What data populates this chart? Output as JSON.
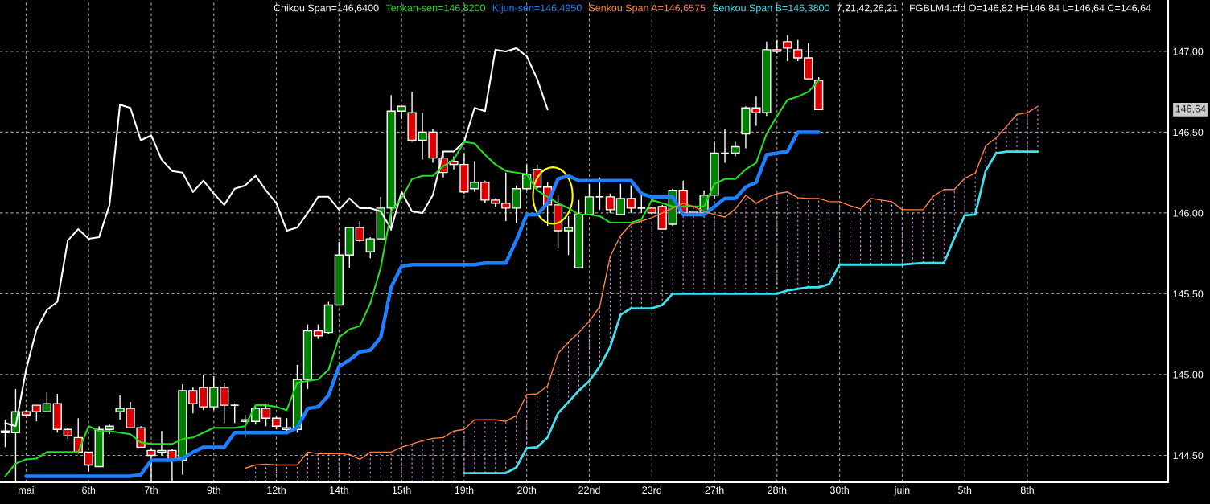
{
  "chart_data": {
    "type": "candlestick",
    "categories": [
      null,
      null,
      "mai",
      null,
      null,
      null,
      null,
      null,
      "6th",
      null,
      null,
      null,
      null,
      null,
      "7th",
      null,
      null,
      null,
      null,
      null,
      "9th",
      null,
      null,
      null,
      null,
      null,
      "12th",
      null,
      null,
      null,
      null,
      null,
      "14th",
      null,
      null,
      null,
      null,
      null,
      "15th",
      null,
      null,
      null,
      null,
      null,
      "19th",
      null,
      null,
      null,
      null,
      null,
      "20th",
      null,
      null,
      null,
      null,
      null,
      "22nd",
      null,
      null,
      null,
      null,
      null,
      "23rd",
      null,
      null,
      null,
      null,
      null,
      "27th",
      null,
      null,
      null,
      null,
      null,
      "28th",
      null,
      null,
      null,
      null,
      null,
      "30th",
      null,
      null,
      null,
      null,
      null,
      "juin",
      null,
      null,
      null,
      null,
      null,
      "5th",
      null,
      null,
      null,
      null,
      null,
      "8th",
      null,
      null,
      null,
      null,
      null,
      null,
      null,
      null,
      null,
      null,
      null,
      null,
      null
    ],
    "ohlc": [
      [
        144.64,
        144.72,
        144.55,
        144.65
      ],
      [
        144.64,
        144.91,
        144.34,
        144.77
      ],
      [
        144.77,
        144.78,
        144.74,
        144.75
      ],
      [
        144.81,
        144.81,
        144.71,
        144.77
      ],
      [
        144.77,
        144.89,
        144.77,
        144.82
      ],
      [
        144.82,
        144.88,
        144.64,
        144.66
      ],
      [
        144.66,
        144.67,
        144.6,
        144.62
      ],
      [
        144.61,
        144.73,
        144.51,
        144.52
      ],
      [
        144.52,
        144.52,
        144.4,
        144.44
      ],
      [
        144.43,
        144.68,
        144.43,
        144.66
      ],
      [
        144.66,
        144.69,
        144.63,
        144.68
      ],
      [
        144.77,
        144.87,
        144.72,
        144.79
      ],
      [
        144.79,
        144.83,
        144.67,
        144.67
      ],
      [
        144.67,
        144.68,
        144.55,
        144.55
      ],
      [
        144.53,
        144.54,
        144.34,
        144.5
      ],
      [
        144.52,
        144.65,
        144.5,
        144.53
      ],
      [
        144.53,
        144.54,
        144.34,
        144.47
      ],
      [
        144.47,
        144.94,
        144.38,
        144.9
      ],
      [
        144.9,
        144.92,
        144.76,
        144.82
      ],
      [
        144.92,
        145.0,
        144.78,
        144.8
      ],
      [
        144.8,
        144.99,
        144.78,
        144.92
      ],
      [
        144.92,
        144.95,
        144.7,
        144.81
      ],
      [
        144.81,
        144.82,
        144.7,
        144.81
      ],
      [
        144.71,
        144.75,
        144.61,
        144.72
      ],
      [
        144.71,
        144.81,
        144.69,
        144.79
      ],
      [
        144.79,
        144.82,
        144.68,
        144.73
      ],
      [
        144.73,
        144.74,
        144.66,
        144.68
      ],
      [
        144.67,
        144.73,
        144.65,
        144.66
      ],
      [
        144.66,
        145.06,
        144.64,
        144.97
      ],
      [
        144.97,
        145.31,
        144.91,
        145.27
      ],
      [
        145.27,
        145.31,
        145.22,
        145.24
      ],
      [
        145.26,
        145.45,
        145.25,
        145.43
      ],
      [
        145.43,
        145.82,
        145.43,
        145.74
      ],
      [
        145.74,
        145.91,
        145.66,
        145.91
      ],
      [
        145.91,
        145.95,
        145.82,
        145.83
      ],
      [
        145.76,
        145.85,
        145.72,
        145.84
      ],
      [
        145.84,
        146.1,
        145.83,
        146.03
      ],
      [
        146.03,
        146.73,
        145.89,
        146.63
      ],
      [
        146.63,
        146.66,
        146.58,
        146.66
      ],
      [
        146.62,
        146.75,
        146.44,
        146.45
      ],
      [
        146.45,
        146.62,
        146.33,
        146.5
      ],
      [
        146.5,
        146.52,
        146.31,
        146.34
      ],
      [
        146.34,
        146.37,
        146.22,
        146.25
      ],
      [
        146.32,
        146.35,
        146.27,
        146.3
      ],
      [
        146.3,
        146.37,
        146.12,
        146.13
      ],
      [
        146.15,
        146.32,
        146.13,
        146.19
      ],
      [
        146.19,
        146.2,
        146.06,
        146.08
      ],
      [
        146.08,
        146.09,
        146.04,
        146.06
      ],
      [
        146.06,
        146.25,
        145.95,
        146.03
      ],
      [
        146.03,
        146.17,
        145.94,
        146.15
      ],
      [
        146.15,
        146.3,
        146.14,
        146.24
      ],
      [
        146.27,
        146.3,
        146.15,
        146.16
      ],
      [
        146.16,
        146.19,
        145.92,
        146.05
      ],
      [
        146.05,
        146.11,
        145.78,
        145.89
      ],
      [
        145.89,
        145.98,
        145.74,
        145.91
      ],
      [
        145.66,
        146.08,
        145.66,
        145.99
      ],
      [
        145.99,
        146.18,
        145.99,
        146.1
      ],
      [
        146.1,
        146.22,
        146.02,
        146.1
      ],
      [
        146.1,
        146.12,
        146.0,
        146.02
      ],
      [
        145.99,
        146.18,
        145.99,
        146.09
      ],
      [
        146.09,
        146.17,
        146.0,
        146.03
      ],
      [
        146.03,
        146.12,
        146.0,
        146.03
      ],
      [
        146.03,
        146.04,
        145.99,
        146.0
      ],
      [
        146.04,
        146.05,
        145.9,
        145.9
      ],
      [
        145.93,
        146.15,
        145.92,
        146.14
      ],
      [
        146.14,
        146.2,
        146.0,
        146.0
      ],
      [
        146.01,
        146.01,
        146.0,
        146.0
      ],
      [
        146.0,
        146.14,
        145.99,
        146.11
      ],
      [
        146.11,
        146.44,
        146.09,
        146.37
      ],
      [
        146.37,
        146.52,
        146.31,
        146.37
      ],
      [
        146.37,
        146.44,
        146.35,
        146.41
      ],
      [
        146.49,
        146.66,
        146.4,
        146.65
      ],
      [
        146.65,
        146.72,
        146.54,
        146.62
      ],
      [
        146.62,
        147.06,
        146.6,
        147.01
      ],
      [
        147.01,
        147.07,
        146.99,
        147.0
      ],
      [
        147.06,
        147.1,
        146.94,
        147.02
      ],
      [
        147.01,
        147.07,
        146.94,
        146.96
      ],
      [
        146.96,
        147.05,
        146.83,
        146.83
      ],
      [
        146.82,
        146.84,
        146.64,
        146.64
      ],
      null,
      null,
      null,
      null,
      null,
      null,
      null,
      null,
      null,
      null,
      null,
      null,
      null,
      null,
      null,
      null,
      null,
      null,
      null,
      null,
      null,
      null,
      null,
      null,
      null,
      null,
      null,
      null,
      null,
      null,
      null,
      null,
      null
    ],
    "series": [
      {
        "name": "Chikou Span=146,6400",
        "type": "line",
        "color": "#ffffff",
        "values": [
          144.7,
          144.68,
          145.03,
          145.28,
          145.4,
          145.45,
          145.83,
          145.9,
          145.84,
          145.85,
          146.05,
          146.67,
          146.65,
          146.45,
          146.48,
          146.33,
          146.26,
          146.25,
          146.13,
          146.2,
          146.12,
          146.05,
          146.15,
          146.17,
          146.23,
          146.14,
          146.06,
          145.89,
          145.91,
          146.0,
          146.1,
          146.1,
          146.02,
          146.09,
          146.03,
          146.03,
          146.01,
          145.9,
          146.13,
          146.01,
          146.0,
          146.11,
          146.38,
          146.38,
          146.44,
          146.65,
          146.63,
          147.01,
          147.0,
          147.02,
          146.97,
          146.83,
          146.64,
          null,
          null,
          null,
          null,
          null,
          null,
          null,
          null,
          null,
          null,
          null,
          null,
          null,
          null,
          null,
          null,
          null,
          null,
          null,
          null,
          null,
          null,
          null,
          null,
          null,
          null,
          null,
          null,
          null,
          null,
          null,
          null,
          null,
          null,
          null,
          null,
          null,
          null,
          null,
          null,
          null,
          null,
          null,
          null,
          null,
          null,
          null,
          null,
          null,
          null,
          null,
          null,
          null,
          null,
          null,
          null,
          null,
          null,
          null
        ]
      },
      {
        "name": "Tenkan-sen=146,8200",
        "type": "line",
        "color": "#22dd22",
        "values": [
          144.37,
          144.45,
          144.475,
          144.48,
          144.52,
          144.52,
          144.52,
          144.52,
          144.68,
          144.65,
          144.65,
          144.64,
          144.63,
          144.58,
          144.57,
          144.57,
          144.57,
          144.6,
          144.61,
          144.64,
          144.67,
          144.67,
          144.67,
          144.68,
          144.81,
          144.81,
          144.8,
          144.78,
          144.95,
          144.96,
          144.97,
          145.03,
          145.23,
          145.28,
          145.3,
          145.44,
          145.66,
          146.01,
          146.09,
          146.21,
          146.23,
          146.23,
          146.29,
          146.33,
          146.44,
          146.43,
          146.36,
          146.3,
          146.26,
          146.25,
          146.24,
          146.14,
          146.1,
          146.06,
          146.03,
          145.99,
          145.99,
          145.98,
          145.94,
          145.94,
          145.94,
          145.96,
          146.08,
          146.06,
          146.04,
          146.04,
          146.04,
          146.04,
          146.18,
          146.21,
          146.21,
          146.27,
          146.31,
          146.49,
          146.6,
          146.7,
          146.72,
          146.75,
          146.82,
          null,
          null,
          null,
          null,
          null,
          null,
          null,
          null,
          null,
          null,
          null,
          null,
          null,
          null,
          null,
          null,
          null,
          null,
          null,
          null,
          null,
          null,
          null,
          null,
          null,
          null,
          null,
          null,
          null,
          null,
          null,
          null,
          null
        ]
      },
      {
        "name": "Kijun-sen=146,4950",
        "type": "line",
        "color": "#1e7fff",
        "values": [
          null,
          null,
          144.37,
          144.37,
          144.37,
          144.37,
          144.37,
          144.37,
          144.37,
          144.37,
          144.37,
          144.37,
          144.37,
          144.38,
          144.47,
          144.47,
          144.47,
          144.48,
          144.52,
          144.55,
          144.55,
          144.55,
          144.64,
          144.64,
          144.64,
          144.64,
          144.64,
          144.64,
          144.67,
          144.79,
          144.8,
          144.87,
          145.05,
          145.09,
          145.14,
          145.15,
          145.23,
          145.54,
          145.67,
          145.68,
          145.68,
          145.68,
          145.68,
          145.68,
          145.68,
          145.68,
          145.69,
          145.69,
          145.69,
          145.83,
          145.99,
          145.99,
          146.06,
          146.21,
          146.23,
          146.2,
          146.2,
          146.2,
          146.2,
          146.2,
          146.2,
          146.12,
          146.1,
          146.1,
          146.1,
          145.99,
          145.99,
          145.99,
          146.04,
          146.09,
          146.09,
          146.16,
          146.19,
          146.36,
          146.37,
          146.38,
          146.5,
          146.5,
          146.5,
          null,
          null,
          null,
          null,
          null,
          null,
          null,
          null,
          null,
          null,
          null,
          null,
          null,
          null,
          null,
          null,
          null,
          null,
          null,
          null,
          null,
          null,
          null,
          null,
          null,
          null,
          null,
          null,
          null,
          null,
          null,
          null,
          null
        ]
      },
      {
        "name": "Senkou Span A=146,6575",
        "type": "line",
        "color": "#ff8040",
        "values": [
          null,
          null,
          null,
          null,
          null,
          null,
          null,
          null,
          null,
          null,
          null,
          null,
          null,
          null,
          null,
          null,
          null,
          null,
          null,
          null,
          null,
          null,
          null,
          144.42,
          144.44,
          144.445,
          144.44,
          144.44,
          144.44,
          144.52,
          144.51,
          144.51,
          144.51,
          144.505,
          144.475,
          144.52,
          144.52,
          144.52,
          144.55,
          144.57,
          144.59,
          144.605,
          144.61,
          144.65,
          144.66,
          144.72,
          144.72,
          144.72,
          144.71,
          144.745,
          144.875,
          144.88,
          144.93,
          145.13,
          145.2,
          145.26,
          145.33,
          145.42,
          145.73,
          145.86,
          145.93,
          145.95,
          145.97,
          146.0,
          146.03,
          146.06,
          146.04,
          146.01,
          145.99,
          145.975,
          146.025,
          146.11,
          146.06,
          146.095,
          146.12,
          146.13,
          146.095,
          146.09,
          146.09,
          146.07,
          146.07,
          146.045,
          146.025,
          146.09,
          146.08,
          146.07,
          146.02,
          146.02,
          146.02,
          146.105,
          146.145,
          146.145,
          146.215,
          146.245,
          146.415,
          146.465,
          146.535,
          146.61,
          146.62,
          146.66,
          null,
          null,
          null,
          null,
          null,
          null,
          null,
          null,
          null,
          null,
          null,
          null
        ]
      },
      {
        "name": "Senkou Span B=146,3800",
        "type": "line",
        "color": "#40e0f0",
        "values": [
          null,
          null,
          null,
          null,
          null,
          null,
          null,
          null,
          null,
          null,
          null,
          null,
          null,
          null,
          null,
          null,
          null,
          null,
          null,
          null,
          null,
          null,
          null,
          null,
          null,
          null,
          null,
          null,
          null,
          null,
          null,
          null,
          null,
          null,
          null,
          null,
          null,
          null,
          null,
          null,
          null,
          null,
          null,
          null,
          144.39,
          144.39,
          144.39,
          144.39,
          144.39,
          144.425,
          144.545,
          144.55,
          144.61,
          144.76,
          144.83,
          144.9,
          144.96,
          145.05,
          145.17,
          145.37,
          145.41,
          145.41,
          145.41,
          145.43,
          145.5,
          145.5,
          145.5,
          145.5,
          145.5,
          145.5,
          145.5,
          145.5,
          145.5,
          145.5,
          145.5,
          145.52,
          145.53,
          145.54,
          145.54,
          145.56,
          145.68,
          145.68,
          145.68,
          145.68,
          145.68,
          145.68,
          145.68,
          145.686,
          145.69,
          145.69,
          145.69,
          145.845,
          145.985,
          145.99,
          146.26,
          146.37,
          146.38,
          146.38,
          146.38,
          146.38,
          null,
          null,
          null,
          null,
          null,
          null,
          null,
          null,
          null,
          null,
          null,
          null
        ]
      }
    ],
    "ylim": [
      144.333,
      147.318
    ],
    "yticks": [
      {
        "value": 144.5,
        "label": "144,50"
      },
      {
        "value": 145.0,
        "label": "145,00"
      },
      {
        "value": 145.5,
        "label": "145,50"
      },
      {
        "value": 146.0,
        "label": "146,00"
      },
      {
        "value": 146.5,
        "label": "146,50"
      },
      {
        "value": 147.0,
        "label": "147,00"
      }
    ],
    "grid": true,
    "legend": "top",
    "annotations": [
      "7,21,42,26,21",
      "FGBLM4.cfd O=146,82 H=146,84 L=146,64 C=146,64",
      "146,64"
    ]
  }
}
